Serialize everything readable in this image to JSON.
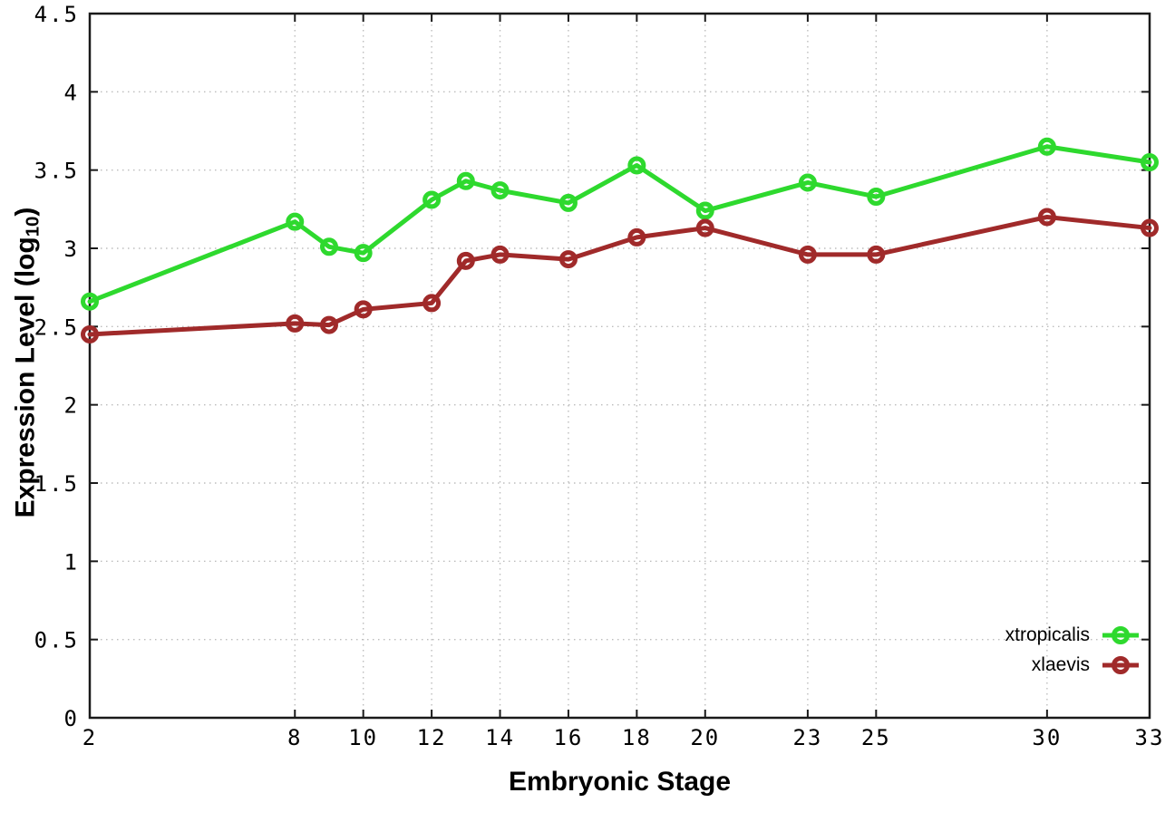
{
  "chart_data": {
    "type": "line",
    "title": "",
    "xlabel": "Embryonic Stage",
    "ylabel": "Expression Level (log10)",
    "ylabel_parts": {
      "prefix": "Expression Level (log",
      "sub": "10",
      "suffix": ")"
    },
    "x": [
      2,
      8,
      9,
      10,
      12,
      13,
      14,
      16,
      18,
      20,
      23,
      25,
      30,
      33
    ],
    "series": [
      {
        "name": "xtropicalis",
        "color": "#2ed92e",
        "values": [
          2.66,
          3.17,
          3.01,
          2.97,
          3.31,
          3.43,
          3.37,
          3.29,
          3.53,
          3.24,
          3.42,
          3.33,
          3.65,
          3.55
        ]
      },
      {
        "name": "xlaevis",
        "color": "#a02a2a",
        "values": [
          2.45,
          2.52,
          2.51,
          2.61,
          2.65,
          2.92,
          2.96,
          2.93,
          3.07,
          3.13,
          2.96,
          2.96,
          3.2,
          3.13
        ]
      }
    ],
    "xticks": [
      2,
      8,
      10,
      12,
      14,
      16,
      18,
      20,
      23,
      25,
      30,
      33
    ],
    "xtick_labels": [
      "2",
      "8",
      "10",
      "12",
      "14",
      "16",
      "18",
      "20",
      "23",
      "25",
      "30",
      "33"
    ],
    "yticks": [
      0,
      0.5,
      1,
      1.5,
      2,
      2.5,
      3,
      3.5,
      4,
      4.5
    ],
    "ytick_labels": [
      "0",
      "0.5",
      "1",
      "1.5",
      "2",
      "2.5",
      "3",
      "3.5",
      "4",
      "4.5"
    ],
    "xlim": [
      2,
      33
    ],
    "ylim": [
      0,
      4.5
    ],
    "grid": true,
    "legend_position": "bottom-right",
    "colors": {
      "background": "#ffffff",
      "border": "#1a1a1a",
      "grid": "#bdbdbd",
      "text": "#000000"
    }
  }
}
